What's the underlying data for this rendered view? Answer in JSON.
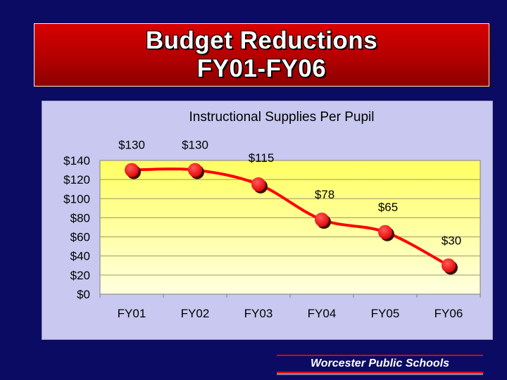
{
  "slide": {
    "title_line1": "Budget Reductions",
    "title_line2": "FY01-FY06",
    "footer": "Worcester Public Schools"
  },
  "colors": {
    "background": "#0b0b63",
    "banner": "#c00000",
    "chart_panel": "#c8c8f0",
    "plot_top": "#ffff60",
    "plot_bottom": "#ffffe0",
    "line": "#ff0000",
    "marker": "#e00000"
  },
  "chart_data": {
    "type": "line",
    "title": "Instructional Supplies Per Pupil",
    "categories": [
      "FY01",
      "FY02",
      "FY03",
      "FY04",
      "FY05",
      "FY06"
    ],
    "values": [
      130,
      130,
      115,
      78,
      65,
      30
    ],
    "data_labels": [
      "$130",
      "$130",
      "$115",
      "$78",
      "$65",
      "$30"
    ],
    "yticks": [
      "$0",
      "$20",
      "$40",
      "$60",
      "$80",
      "$100",
      "$120",
      "$140"
    ],
    "ylim": [
      0,
      140
    ],
    "xlabel": "",
    "ylabel": "",
    "grid": true,
    "smooth": true
  }
}
